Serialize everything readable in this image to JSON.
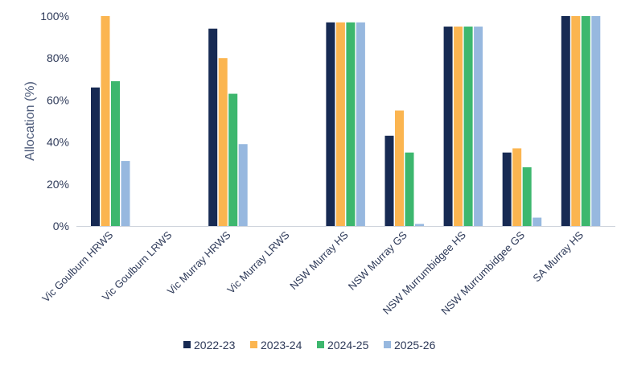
{
  "chart_data": {
    "type": "bar",
    "ylabel": "Allocation (%)",
    "ylim": [
      0,
      100
    ],
    "yticks": [
      "0%",
      "20%",
      "40%",
      "60%",
      "80%",
      "100%"
    ],
    "ytick_values": [
      0,
      20,
      40,
      60,
      80,
      100
    ],
    "grid": false,
    "legend_position": "bottom",
    "categories": [
      "Vic Goulburn HRWS",
      "Vic Goulburn LRWS",
      "Vic Murray HRWS",
      "Vic Murray LRWS",
      "NSW Murray HS",
      "NSW Murray GS",
      "NSW Murrumbidgee HS",
      "NSW Murrumbidgee GS",
      "SA Murray HS"
    ],
    "series": [
      {
        "name": "2022-23",
        "color": "#172a53",
        "values": [
          66,
          0,
          94,
          0,
          97,
          43,
          95,
          35,
          100
        ]
      },
      {
        "name": "2023-24",
        "color": "#fbb550",
        "values": [
          100,
          0,
          80,
          0,
          97,
          55,
          95,
          37,
          100
        ]
      },
      {
        "name": "2024-25",
        "color": "#3db76e",
        "values": [
          69,
          0,
          63,
          0,
          97,
          35,
          95,
          28,
          100
        ]
      },
      {
        "name": "2025-26",
        "color": "#97b8df",
        "values": [
          31,
          0,
          39,
          0,
          97,
          1,
          95,
          4,
          100
        ]
      }
    ]
  }
}
